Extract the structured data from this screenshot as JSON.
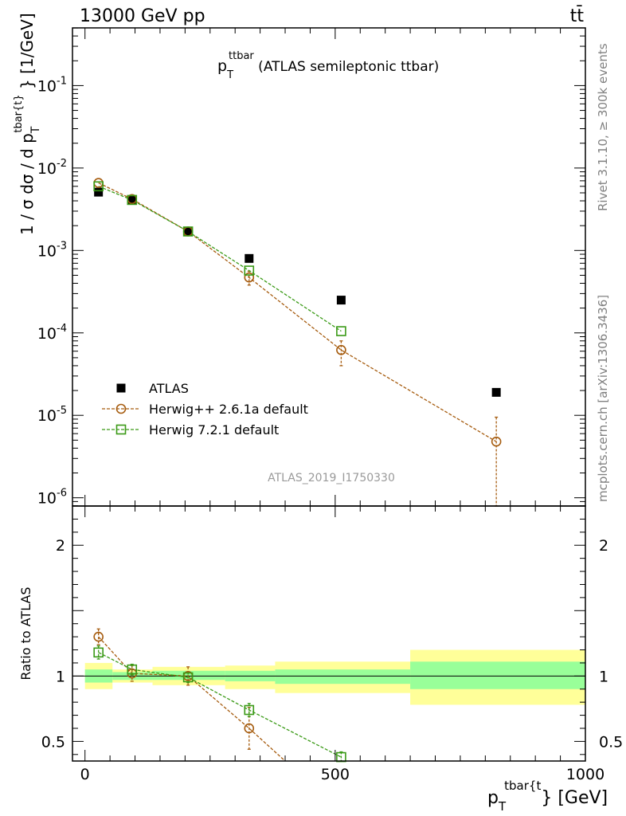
{
  "header": {
    "energy_label": "13000 GeV pp",
    "process_label": "tt̄"
  },
  "side_labels": {
    "rivet": "Rivet 3.1.10, ≥ 300k events",
    "mcplots": "mcplots.cern.ch [arXiv:1306.3436]"
  },
  "colors": {
    "data": "#000000",
    "herwigpp": "#a65c0f",
    "herwig7": "#3a9a16",
    "band_inner": "#99ff99",
    "band_outer": "#ffff99",
    "watermark": "#9a9a9a"
  },
  "chart_data": [
    {
      "type": "scatter",
      "panel": "main",
      "title_main": "p",
      "title_sub": "T",
      "title_sup": "ttbar",
      "title_rest": " (ATLAS semileptonic ttbar)",
      "ylabel": "1 / σ dσ / d p_T^{tbar{t}} [1/GeV]",
      "yscale": "log",
      "xlim": [
        -25,
        1000
      ],
      "ylim_log10": [
        -6.1,
        -0.3
      ],
      "y_tick_labels": [
        "10^-1",
        "10^-2",
        "10^-3",
        "10^-4",
        "10^-5",
        "10^-6"
      ],
      "y_tick_exponents": [
        -1,
        -2,
        -3,
        -4,
        -5,
        -6
      ],
      "watermark": "ATLAS_2019_I1750330",
      "legend_position": "bottom-left",
      "series": [
        {
          "name": "ATLAS",
          "marker": "filled-square",
          "x": [
            27,
            94,
            206,
            328,
            512,
            822
          ],
          "y": [
            0.0051,
            0.0041,
            0.0017,
            0.0008,
            0.00025,
            1.9e-05
          ]
        },
        {
          "name": "Herwig++ 2.6.1a default",
          "marker": "open-circle",
          "x": [
            27,
            94,
            206,
            328,
            512,
            822
          ],
          "y": [
            0.0066,
            0.0042,
            0.0017,
            0.00047,
            6.2e-05,
            4.8e-06
          ],
          "yerr_low": [
            0.0003,
            0.0002,
            6e-05,
            9e-05,
            2.2e-05,
            4.7e-06
          ],
          "yerr_high": [
            0.0003,
            0.0002,
            6e-05,
            9e-05,
            1.8e-05,
            4.7e-06
          ]
        },
        {
          "name": "Herwig 7.2.1 default",
          "marker": "open-square",
          "x": [
            27,
            94,
            206,
            328,
            512
          ],
          "y": [
            0.006,
            0.0041,
            0.0017,
            0.00057,
            0.000105
          ],
          "yerr_low": [
            0.0002,
            0.0001,
            4e-05,
            3e-05,
            6e-06
          ],
          "yerr_high": [
            0.0002,
            0.0001,
            4e-05,
            3e-05,
            6e-06
          ]
        }
      ]
    },
    {
      "type": "scatter",
      "panel": "ratio",
      "ylabel": "Ratio to ATLAS",
      "xlabel": "p_T^{tbar{t}} [GeV]",
      "xlabel_main": "p",
      "xlabel_sub": "T",
      "xlabel_sup": "tbar{t",
      "xlabel_rest": "} [GeV]",
      "xlim": [
        -25,
        1000
      ],
      "ylim": [
        0.35,
        2.3
      ],
      "x_ticks": [
        0,
        500,
        1000
      ],
      "x_tick_labels": [
        "0",
        "500",
        "1000"
      ],
      "y_ticks": [
        2,
        1,
        0.5
      ],
      "y_tick_labels": [
        "2",
        "1",
        "0.5"
      ],
      "reference_line": 1,
      "bands": [
        {
          "x0": 0,
          "x1": 55,
          "inner": [
            0.95,
            1.05
          ],
          "outer": [
            0.9,
            1.1
          ]
        },
        {
          "x0": 55,
          "x1": 135,
          "inner": [
            0.97,
            1.03
          ],
          "outer": [
            0.95,
            1.05
          ]
        },
        {
          "x0": 135,
          "x1": 280,
          "inner": [
            0.97,
            1.04
          ],
          "outer": [
            0.93,
            1.07
          ]
        },
        {
          "x0": 280,
          "x1": 380,
          "inner": [
            0.96,
            1.04
          ],
          "outer": [
            0.9,
            1.08
          ]
        },
        {
          "x0": 380,
          "x1": 650,
          "inner": [
            0.94,
            1.05
          ],
          "outer": [
            0.87,
            1.11
          ]
        },
        {
          "x0": 650,
          "x1": 1000,
          "inner": [
            0.9,
            1.11
          ],
          "outer": [
            0.78,
            1.2
          ]
        }
      ],
      "series": [
        {
          "name": "Herwig++ 2.6.1a default",
          "marker": "open-circle",
          "x": [
            27,
            94,
            206,
            328,
            400
          ],
          "y": [
            1.3,
            1.02,
            1.0,
            0.6,
            0.35
          ],
          "yerr_low": [
            0.06,
            0.06,
            0.07,
            0.16,
            0
          ],
          "yerr_high": [
            0.06,
            0.06,
            0.07,
            0.16,
            0
          ]
        },
        {
          "name": "Herwig 7.2.1 default",
          "marker": "open-square",
          "x": [
            27,
            94,
            206,
            328,
            512
          ],
          "y": [
            1.18,
            1.05,
            0.99,
            0.74,
            0.38
          ],
          "yerr_low": [
            0.05,
            0.04,
            0.04,
            0.05,
            0.04
          ],
          "yerr_high": [
            0.05,
            0.04,
            0.04,
            0.05,
            0.04
          ]
        }
      ]
    }
  ]
}
